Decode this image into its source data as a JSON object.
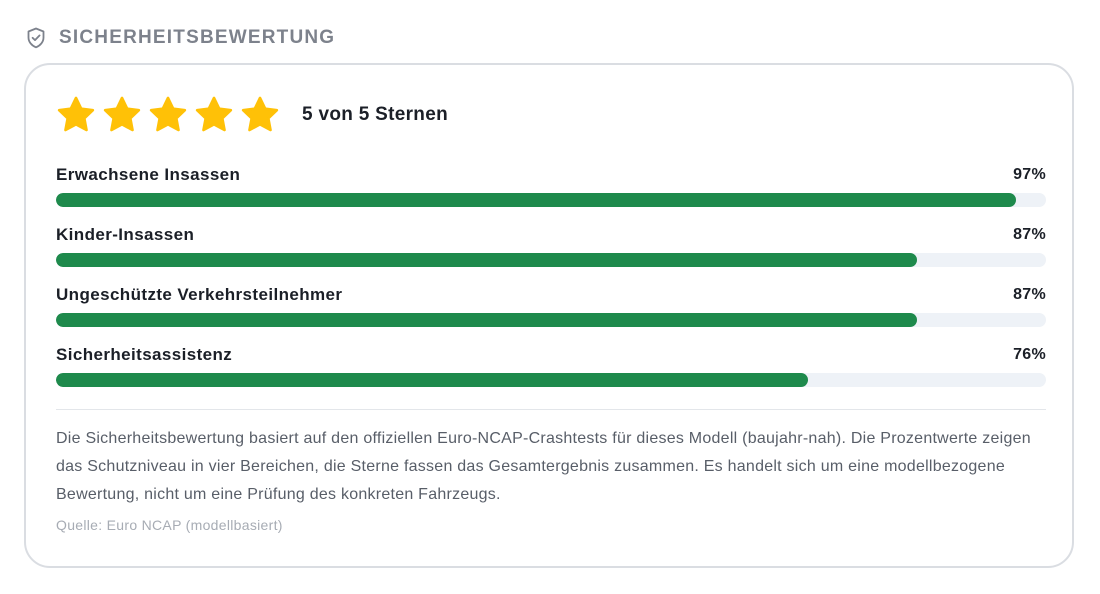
{
  "section": {
    "title": "SICHERHEITSBEWERTUNG",
    "icon": "shield-check-icon"
  },
  "rating": {
    "stars_filled": 5,
    "stars_total": 5,
    "label": "5 von 5 Sternen",
    "star_color": "#FFC107"
  },
  "metrics": [
    {
      "label": "Erwachsene Insassen",
      "value_text": "97%",
      "value": 97
    },
    {
      "label": "Kinder-Insassen",
      "value_text": "87%",
      "value": 87
    },
    {
      "label": "Ungeschützte Verkehrsteilnehmer",
      "value_text": "87%",
      "value": 87
    },
    {
      "label": "Sicherheitsassistenz",
      "value_text": "76%",
      "value": 76
    }
  ],
  "colors": {
    "bar_fill": "#1E8A4C",
    "bar_track": "#EEF2F7",
    "header_text": "#7D828C"
  },
  "description": "Die Sicherheitsbewertung basiert auf den offiziellen Euro-NCAP-Crashtests für dieses Modell (baujahr-nah). Die Prozentwerte zeigen das Schutzniveau in vier Bereichen, die Sterne fassen das Gesamtergebnis zusammen. Es handelt sich um eine modellbezogene Bewertung, nicht um eine Prüfung des konkreten Fahrzeugs.",
  "source": "Quelle: Euro NCAP (modellbasiert)"
}
